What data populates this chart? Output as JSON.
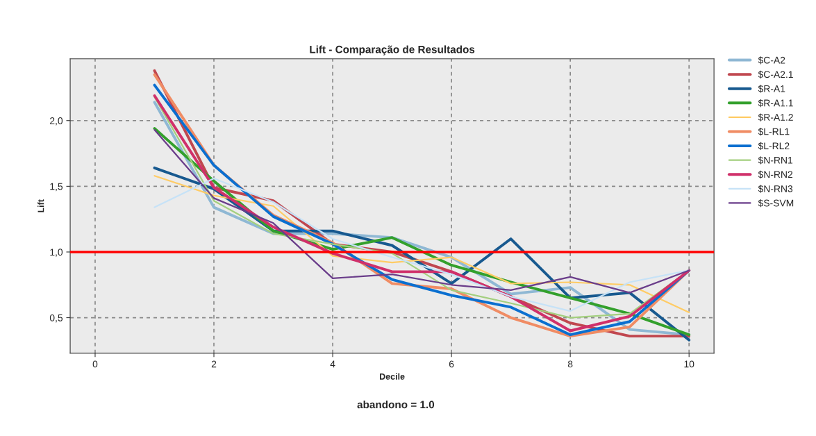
{
  "chart_data": {
    "type": "line",
    "title": "Lift - Comparação de Resultados",
    "xlabel": "Decile",
    "ylabel": "Lift",
    "x": [
      1,
      2,
      3,
      4,
      5,
      6,
      7,
      8,
      9,
      10
    ],
    "series": [
      {
        "name": "$C-A2",
        "color": "#8fb8d4",
        "values": [
          2.14,
          1.34,
          1.14,
          1.14,
          1.11,
          0.96,
          0.68,
          0.73,
          0.41,
          0.37
        ]
      },
      {
        "name": "$C-A2.1",
        "color": "#c0474f",
        "values": [
          2.38,
          1.49,
          1.39,
          1.06,
          1.0,
          0.85,
          0.66,
          0.46,
          0.36,
          0.36
        ]
      },
      {
        "name": "$R-A1",
        "color": "#17598f",
        "values": [
          1.64,
          1.48,
          1.16,
          1.16,
          1.05,
          0.76,
          1.1,
          0.65,
          0.69,
          0.33
        ]
      },
      {
        "name": "$R-A1.1",
        "color": "#33a02c",
        "values": [
          1.94,
          1.54,
          1.16,
          1.02,
          1.11,
          0.9,
          0.77,
          0.65,
          0.53,
          0.37
        ]
      },
      {
        "name": "$R-A1.2",
        "color": "#ffcc66",
        "values": [
          1.58,
          1.43,
          1.35,
          0.97,
          0.92,
          0.96,
          0.76,
          0.77,
          0.75,
          0.54
        ]
      },
      {
        "name": "$L-RL1",
        "color": "#f08c64",
        "values": [
          2.35,
          1.66,
          1.28,
          1.07,
          0.76,
          0.72,
          0.5,
          0.36,
          0.43,
          0.86
        ]
      },
      {
        "name": "$L-RL2",
        "color": "#0a6fd0",
        "values": [
          2.27,
          1.66,
          1.27,
          1.06,
          0.79,
          0.67,
          0.58,
          0.37,
          0.47,
          0.86
        ]
      },
      {
        "name": "$N-RN1",
        "color": "#a3cf7e",
        "values": [
          2.18,
          1.39,
          1.14,
          1.06,
          0.99,
          0.71,
          0.61,
          0.5,
          0.53,
          0.86
        ]
      },
      {
        "name": "$N-RN2",
        "color": "#d0306a",
        "values": [
          2.19,
          1.49,
          1.19,
          0.99,
          0.85,
          0.85,
          0.66,
          0.4,
          0.51,
          0.86
        ]
      },
      {
        "name": "$N-RN3",
        "color": "#c6e2f7",
        "values": [
          1.34,
          1.56,
          1.38,
          1.1,
          0.96,
          0.83,
          0.66,
          0.55,
          0.77,
          0.86
        ]
      },
      {
        "name": "$S-SVM",
        "color": "#6a3d8a",
        "values": [
          1.93,
          1.41,
          1.22,
          0.8,
          0.83,
          0.75,
          0.71,
          0.81,
          0.69,
          0.86
        ]
      }
    ],
    "xlim": [
      -0.42,
      10.42
    ],
    "xticks": [
      0,
      2,
      4,
      6,
      8,
      10
    ],
    "ylim": [
      0.23,
      2.47
    ],
    "yticks": [
      {
        "value": 0.5,
        "label": "0,5"
      },
      {
        "value": 1.0,
        "label": "1,0"
      },
      {
        "value": 1.5,
        "label": "1,5"
      },
      {
        "value": 2.0,
        "label": "2,0"
      }
    ],
    "ref_lines": [
      {
        "axis": "y",
        "value": 1.0,
        "color": "#ff0000",
        "line_style": "solid"
      }
    ],
    "annotations": [
      "abandono = 1.0"
    ],
    "grid": true,
    "legend": "right",
    "marker": "none",
    "line_style": "solid"
  }
}
